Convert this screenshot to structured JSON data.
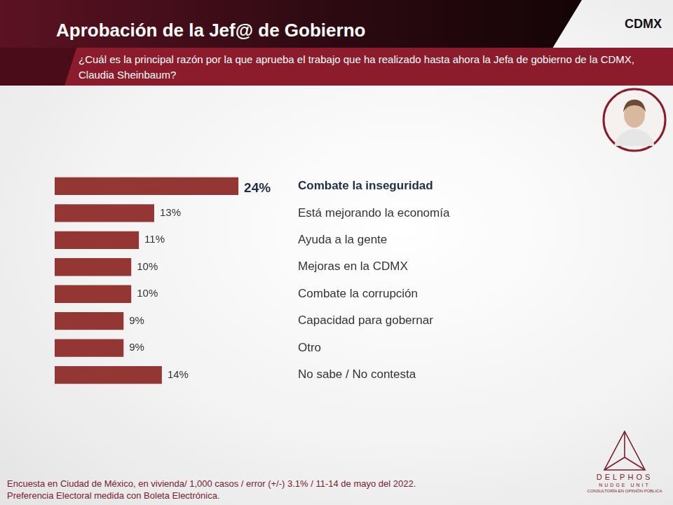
{
  "chart_data": {
    "type": "bar",
    "orientation": "horizontal",
    "title": "Aprobación de la Jef@ de Gobierno",
    "subtitle": "¿Cuál es la principal razón por la que aprueba el trabajo que ha realizado hasta ahora la Jefa de gobierno de la CDMX, Claudia Sheinbaum?",
    "categories": [
      "Combate la inseguridad",
      "Está mejorando la economía",
      "Ayuda a la gente",
      "Mejoras en la CDMX",
      "Combate la corrupción",
      "Capacidad para gobernar",
      "Otro",
      "No sabe / No contesta"
    ],
    "values": [
      24,
      13,
      11,
      10,
      10,
      9,
      9,
      14
    ],
    "value_labels": [
      "24%",
      "13%",
      "11%",
      "10%",
      "10%",
      "9%",
      "9%",
      "14%"
    ],
    "color": "#943634",
    "data_labels": true,
    "grid": false,
    "tick_labels": "y"
  },
  "header": {
    "region": "CDMX"
  },
  "footer": [
    "Encuesta en Ciudad de México, en vivienda/ 1,000 casos / error (+/-) 3.1% / 11-14 de mayo del 2022.",
    "Preferencia Electoral medida con Boleta Electrónica."
  ],
  "logo": {
    "name": "DELPHOS",
    "unit": "NUDGE UNIT",
    "tagline": "CONSULTORÍA EN OPINIÓN PÚBLICA"
  }
}
